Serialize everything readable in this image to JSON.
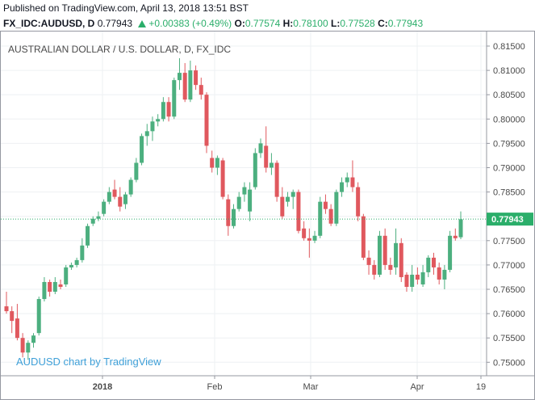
{
  "header": {
    "published": "Published on TradingView.com, April 13, 2018 13:51 BST"
  },
  "symbol_line": {
    "symbol": "FX_IDC:AUDUSD, D",
    "last": "0.77943",
    "change": "+0.00383 (+0.49%)",
    "o_label": "O:",
    "o_value": "0.77574",
    "h_label": "H:",
    "h_value": "0.78100",
    "l_label": "L:",
    "l_value": "0.77528",
    "c_label": "C:",
    "c_value": "0.77943"
  },
  "colors": {
    "up": "#4caf7f",
    "down": "#e0585e",
    "price_line": "#2bae6a",
    "watermark": "#3fa0d8"
  },
  "chart_data": {
    "type": "candlestick",
    "title": "AUSTRALIAN DOLLAR / U.S. DOLLAR, D, FX_IDC",
    "watermark": "AUDUSD chart by TradingView",
    "ylim": [
      0.745,
      0.818
    ],
    "y_ticks": [
      "0.81500",
      "0.81000",
      "0.80500",
      "0.80000",
      "0.79500",
      "0.79000",
      "0.78500",
      "0.78000",
      "0.77500",
      "0.77000",
      "0.76500",
      "0.76000",
      "0.75500",
      "0.75000"
    ],
    "x_ticks": [
      "2018",
      "Feb",
      "Mar",
      "Apr",
      "19"
    ],
    "last_price_label": "0.77943",
    "last_price": 0.77943,
    "candles": [
      {
        "o": 0.7615,
        "h": 0.7645,
        "l": 0.76,
        "c": 0.7605
      },
      {
        "o": 0.7605,
        "h": 0.7615,
        "l": 0.756,
        "c": 0.7585
      },
      {
        "o": 0.759,
        "h": 0.762,
        "l": 0.7545,
        "c": 0.755
      },
      {
        "o": 0.755,
        "h": 0.756,
        "l": 0.751,
        "c": 0.752
      },
      {
        "o": 0.752,
        "h": 0.7545,
        "l": 0.7505,
        "c": 0.754
      },
      {
        "o": 0.754,
        "h": 0.756,
        "l": 0.753,
        "c": 0.7555
      },
      {
        "o": 0.756,
        "h": 0.7635,
        "l": 0.7555,
        "c": 0.763
      },
      {
        "o": 0.763,
        "h": 0.7675,
        "l": 0.7625,
        "c": 0.7665
      },
      {
        "o": 0.7665,
        "h": 0.767,
        "l": 0.7635,
        "c": 0.7645
      },
      {
        "o": 0.7645,
        "h": 0.7675,
        "l": 0.764,
        "c": 0.7665
      },
      {
        "o": 0.766,
        "h": 0.767,
        "l": 0.765,
        "c": 0.7655
      },
      {
        "o": 0.766,
        "h": 0.77,
        "l": 0.7655,
        "c": 0.7695
      },
      {
        "o": 0.7695,
        "h": 0.7705,
        "l": 0.769,
        "c": 0.77
      },
      {
        "o": 0.77,
        "h": 0.7715,
        "l": 0.7695,
        "c": 0.771
      },
      {
        "o": 0.771,
        "h": 0.7755,
        "l": 0.7705,
        "c": 0.774
      },
      {
        "o": 0.774,
        "h": 0.7785,
        "l": 0.7735,
        "c": 0.778
      },
      {
        "o": 0.7785,
        "h": 0.78,
        "l": 0.778,
        "c": 0.7795
      },
      {
        "o": 0.7795,
        "h": 0.781,
        "l": 0.779,
        "c": 0.78
      },
      {
        "o": 0.7805,
        "h": 0.7835,
        "l": 0.78,
        "c": 0.783
      },
      {
        "o": 0.783,
        "h": 0.786,
        "l": 0.7825,
        "c": 0.785
      },
      {
        "o": 0.7855,
        "h": 0.7875,
        "l": 0.7835,
        "c": 0.784
      },
      {
        "o": 0.784,
        "h": 0.786,
        "l": 0.781,
        "c": 0.782
      },
      {
        "o": 0.7825,
        "h": 0.785,
        "l": 0.7815,
        "c": 0.7845
      },
      {
        "o": 0.7845,
        "h": 0.788,
        "l": 0.784,
        "c": 0.7875
      },
      {
        "o": 0.7875,
        "h": 0.792,
        "l": 0.787,
        "c": 0.791
      },
      {
        "o": 0.791,
        "h": 0.797,
        "l": 0.7905,
        "c": 0.7965
      },
      {
        "o": 0.7965,
        "h": 0.799,
        "l": 0.7945,
        "c": 0.7975
      },
      {
        "o": 0.7975,
        "h": 0.8005,
        "l": 0.7955,
        "c": 0.7995
      },
      {
        "o": 0.7995,
        "h": 0.801,
        "l": 0.7985,
        "c": 0.8
      },
      {
        "o": 0.8,
        "h": 0.8045,
        "l": 0.7995,
        "c": 0.8035
      },
      {
        "o": 0.8035,
        "h": 0.8045,
        "l": 0.7995,
        "c": 0.8005
      },
      {
        "o": 0.8005,
        "h": 0.8085,
        "l": 0.8,
        "c": 0.808
      },
      {
        "o": 0.808,
        "h": 0.8125,
        "l": 0.806,
        "c": 0.8095
      },
      {
        "o": 0.8095,
        "h": 0.8115,
        "l": 0.8035,
        "c": 0.804
      },
      {
        "o": 0.804,
        "h": 0.812,
        "l": 0.8035,
        "c": 0.81
      },
      {
        "o": 0.81,
        "h": 0.811,
        "l": 0.806,
        "c": 0.807
      },
      {
        "o": 0.807,
        "h": 0.8085,
        "l": 0.804,
        "c": 0.805
      },
      {
        "o": 0.805,
        "h": 0.8055,
        "l": 0.793,
        "c": 0.7945
      },
      {
        "o": 0.792,
        "h": 0.7935,
        "l": 0.789,
        "c": 0.79
      },
      {
        "o": 0.79,
        "h": 0.7925,
        "l": 0.7885,
        "c": 0.792
      },
      {
        "o": 0.7915,
        "h": 0.792,
        "l": 0.7835,
        "c": 0.784
      },
      {
        "o": 0.7835,
        "h": 0.7845,
        "l": 0.776,
        "c": 0.778
      },
      {
        "o": 0.778,
        "h": 0.7825,
        "l": 0.7775,
        "c": 0.7815
      },
      {
        "o": 0.7815,
        "h": 0.785,
        "l": 0.781,
        "c": 0.784
      },
      {
        "o": 0.7845,
        "h": 0.787,
        "l": 0.783,
        "c": 0.786
      },
      {
        "o": 0.781,
        "h": 0.787,
        "l": 0.779,
        "c": 0.7855
      },
      {
        "o": 0.786,
        "h": 0.794,
        "l": 0.7855,
        "c": 0.793
      },
      {
        "o": 0.793,
        "h": 0.796,
        "l": 0.792,
        "c": 0.795
      },
      {
        "o": 0.7945,
        "h": 0.7985,
        "l": 0.789,
        "c": 0.79
      },
      {
        "o": 0.79,
        "h": 0.793,
        "l": 0.7885,
        "c": 0.791
      },
      {
        "o": 0.791,
        "h": 0.7915,
        "l": 0.783,
        "c": 0.784
      },
      {
        "o": 0.784,
        "h": 0.786,
        "l": 0.7795,
        "c": 0.78
      },
      {
        "o": 0.783,
        "h": 0.785,
        "l": 0.782,
        "c": 0.784
      },
      {
        "o": 0.784,
        "h": 0.7855,
        "l": 0.7815,
        "c": 0.785
      },
      {
        "o": 0.785,
        "h": 0.7855,
        "l": 0.7765,
        "c": 0.777
      },
      {
        "o": 0.7775,
        "h": 0.779,
        "l": 0.775,
        "c": 0.7755
      },
      {
        "o": 0.7755,
        "h": 0.7775,
        "l": 0.7715,
        "c": 0.775
      },
      {
        "o": 0.775,
        "h": 0.777,
        "l": 0.7745,
        "c": 0.776
      },
      {
        "o": 0.776,
        "h": 0.784,
        "l": 0.7755,
        "c": 0.783
      },
      {
        "o": 0.783,
        "h": 0.7845,
        "l": 0.7805,
        "c": 0.7815
      },
      {
        "o": 0.7815,
        "h": 0.7825,
        "l": 0.778,
        "c": 0.7785
      },
      {
        "o": 0.7785,
        "h": 0.7855,
        "l": 0.778,
        "c": 0.785
      },
      {
        "o": 0.785,
        "h": 0.788,
        "l": 0.784,
        "c": 0.787
      },
      {
        "o": 0.787,
        "h": 0.789,
        "l": 0.786,
        "c": 0.788
      },
      {
        "o": 0.788,
        "h": 0.7915,
        "l": 0.785,
        "c": 0.786
      },
      {
        "o": 0.786,
        "h": 0.787,
        "l": 0.779,
        "c": 0.78
      },
      {
        "o": 0.78,
        "h": 0.7805,
        "l": 0.771,
        "c": 0.7715
      },
      {
        "o": 0.7715,
        "h": 0.773,
        "l": 0.768,
        "c": 0.77
      },
      {
        "o": 0.77,
        "h": 0.771,
        "l": 0.767,
        "c": 0.768
      },
      {
        "o": 0.768,
        "h": 0.777,
        "l": 0.7675,
        "c": 0.776
      },
      {
        "o": 0.776,
        "h": 0.7775,
        "l": 0.769,
        "c": 0.77
      },
      {
        "o": 0.77,
        "h": 0.7715,
        "l": 0.768,
        "c": 0.769
      },
      {
        "o": 0.7695,
        "h": 0.7775,
        "l": 0.768,
        "c": 0.7745
      },
      {
        "o": 0.7745,
        "h": 0.7755,
        "l": 0.7665,
        "c": 0.7675
      },
      {
        "o": 0.768,
        "h": 0.7685,
        "l": 0.7645,
        "c": 0.7655
      },
      {
        "o": 0.7655,
        "h": 0.77,
        "l": 0.7645,
        "c": 0.768
      },
      {
        "o": 0.768,
        "h": 0.7695,
        "l": 0.766,
        "c": 0.767
      },
      {
        "o": 0.766,
        "h": 0.77,
        "l": 0.7655,
        "c": 0.7685
      },
      {
        "o": 0.7685,
        "h": 0.772,
        "l": 0.7675,
        "c": 0.7715
      },
      {
        "o": 0.7715,
        "h": 0.7725,
        "l": 0.768,
        "c": 0.7695
      },
      {
        "o": 0.7695,
        "h": 0.7705,
        "l": 0.766,
        "c": 0.767
      },
      {
        "o": 0.767,
        "h": 0.77,
        "l": 0.765,
        "c": 0.769
      },
      {
        "o": 0.769,
        "h": 0.777,
        "l": 0.7685,
        "c": 0.776
      },
      {
        "o": 0.776,
        "h": 0.7775,
        "l": 0.775,
        "c": 0.7755
      },
      {
        "o": 0.7757,
        "h": 0.781,
        "l": 0.7753,
        "c": 0.7794
      }
    ]
  }
}
